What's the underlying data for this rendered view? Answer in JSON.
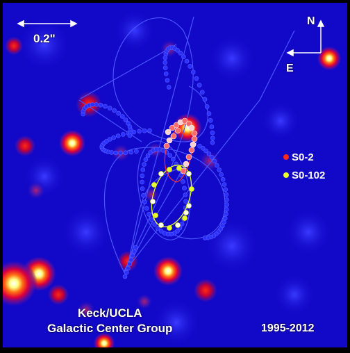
{
  "scale_bar": {
    "label": "0.2\""
  },
  "compass": {
    "north": "N",
    "east": "E"
  },
  "legend": [
    {
      "label": "S0-2",
      "color": "#ff2a1a"
    },
    {
      "label": "S0-102",
      "color": "#e8ff2a"
    }
  ],
  "credit": {
    "line1": "Keck/UCLA",
    "line2": "Galactic Center Group"
  },
  "date_range": "1995-2012",
  "colors": {
    "background": "#1208c8",
    "orbit_line": "#4a55ff",
    "s0_2_points": "#ff5a5a",
    "s0_102_points": "#e8ff2a",
    "s0_102_orbit": "#e8ff2a",
    "s0_2_orbit_near": "#ff3030"
  },
  "icons": {
    "north_arrow": "arrow-up-icon",
    "east_arrow": "arrow-left-icon",
    "scale_arrows": "double-arrow-icon"
  }
}
